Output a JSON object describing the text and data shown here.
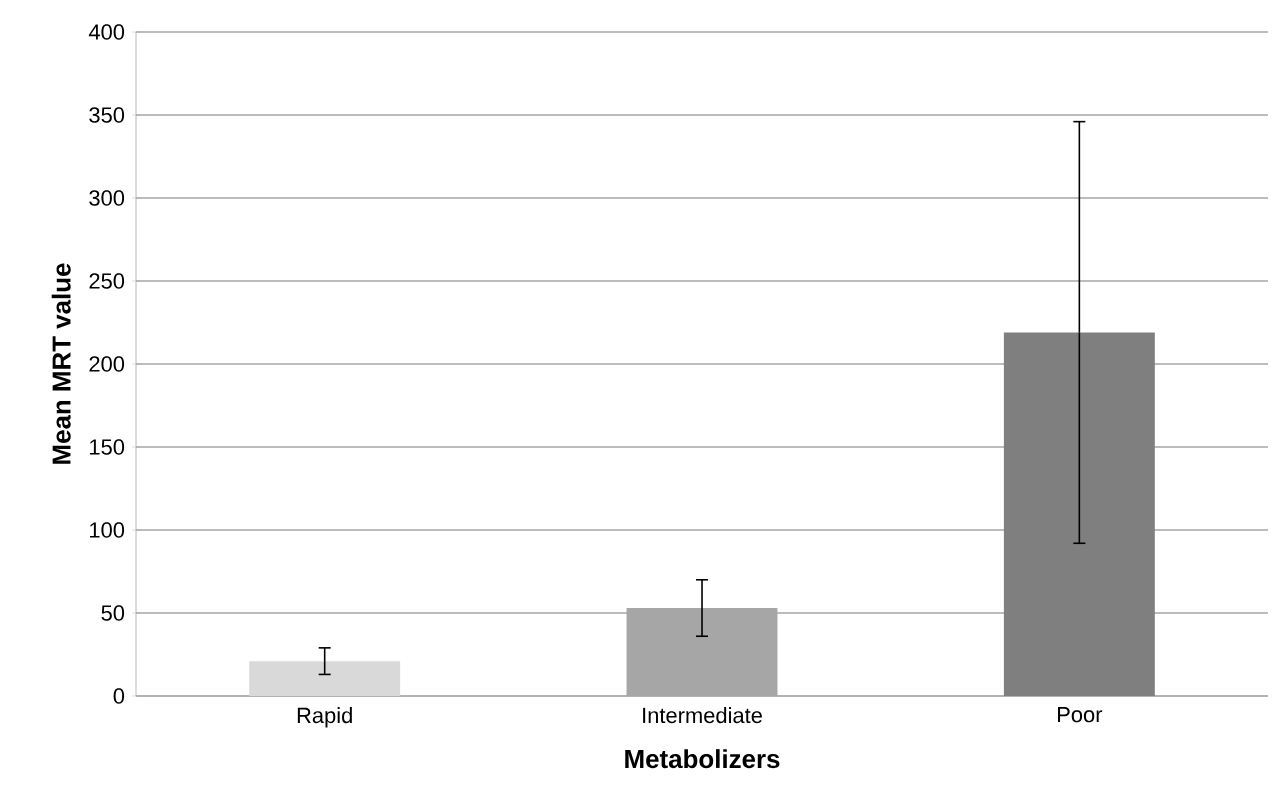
{
  "chart_data": {
    "type": "bar",
    "xlabel": "Metabolizers",
    "ylabel": "Mean MRT value",
    "categories": [
      "Rapid",
      "Intermediate",
      "Poor"
    ],
    "values": [
      21,
      53,
      219
    ],
    "errors": [
      8,
      17,
      127
    ],
    "colors": [
      "#d9d9d9",
      "#a6a6a6",
      "#7f7f7f"
    ],
    "ylim": [
      0,
      400
    ],
    "yticks": [
      0,
      50,
      100,
      150,
      200,
      250,
      300,
      350,
      400
    ],
    "grid": "y"
  }
}
